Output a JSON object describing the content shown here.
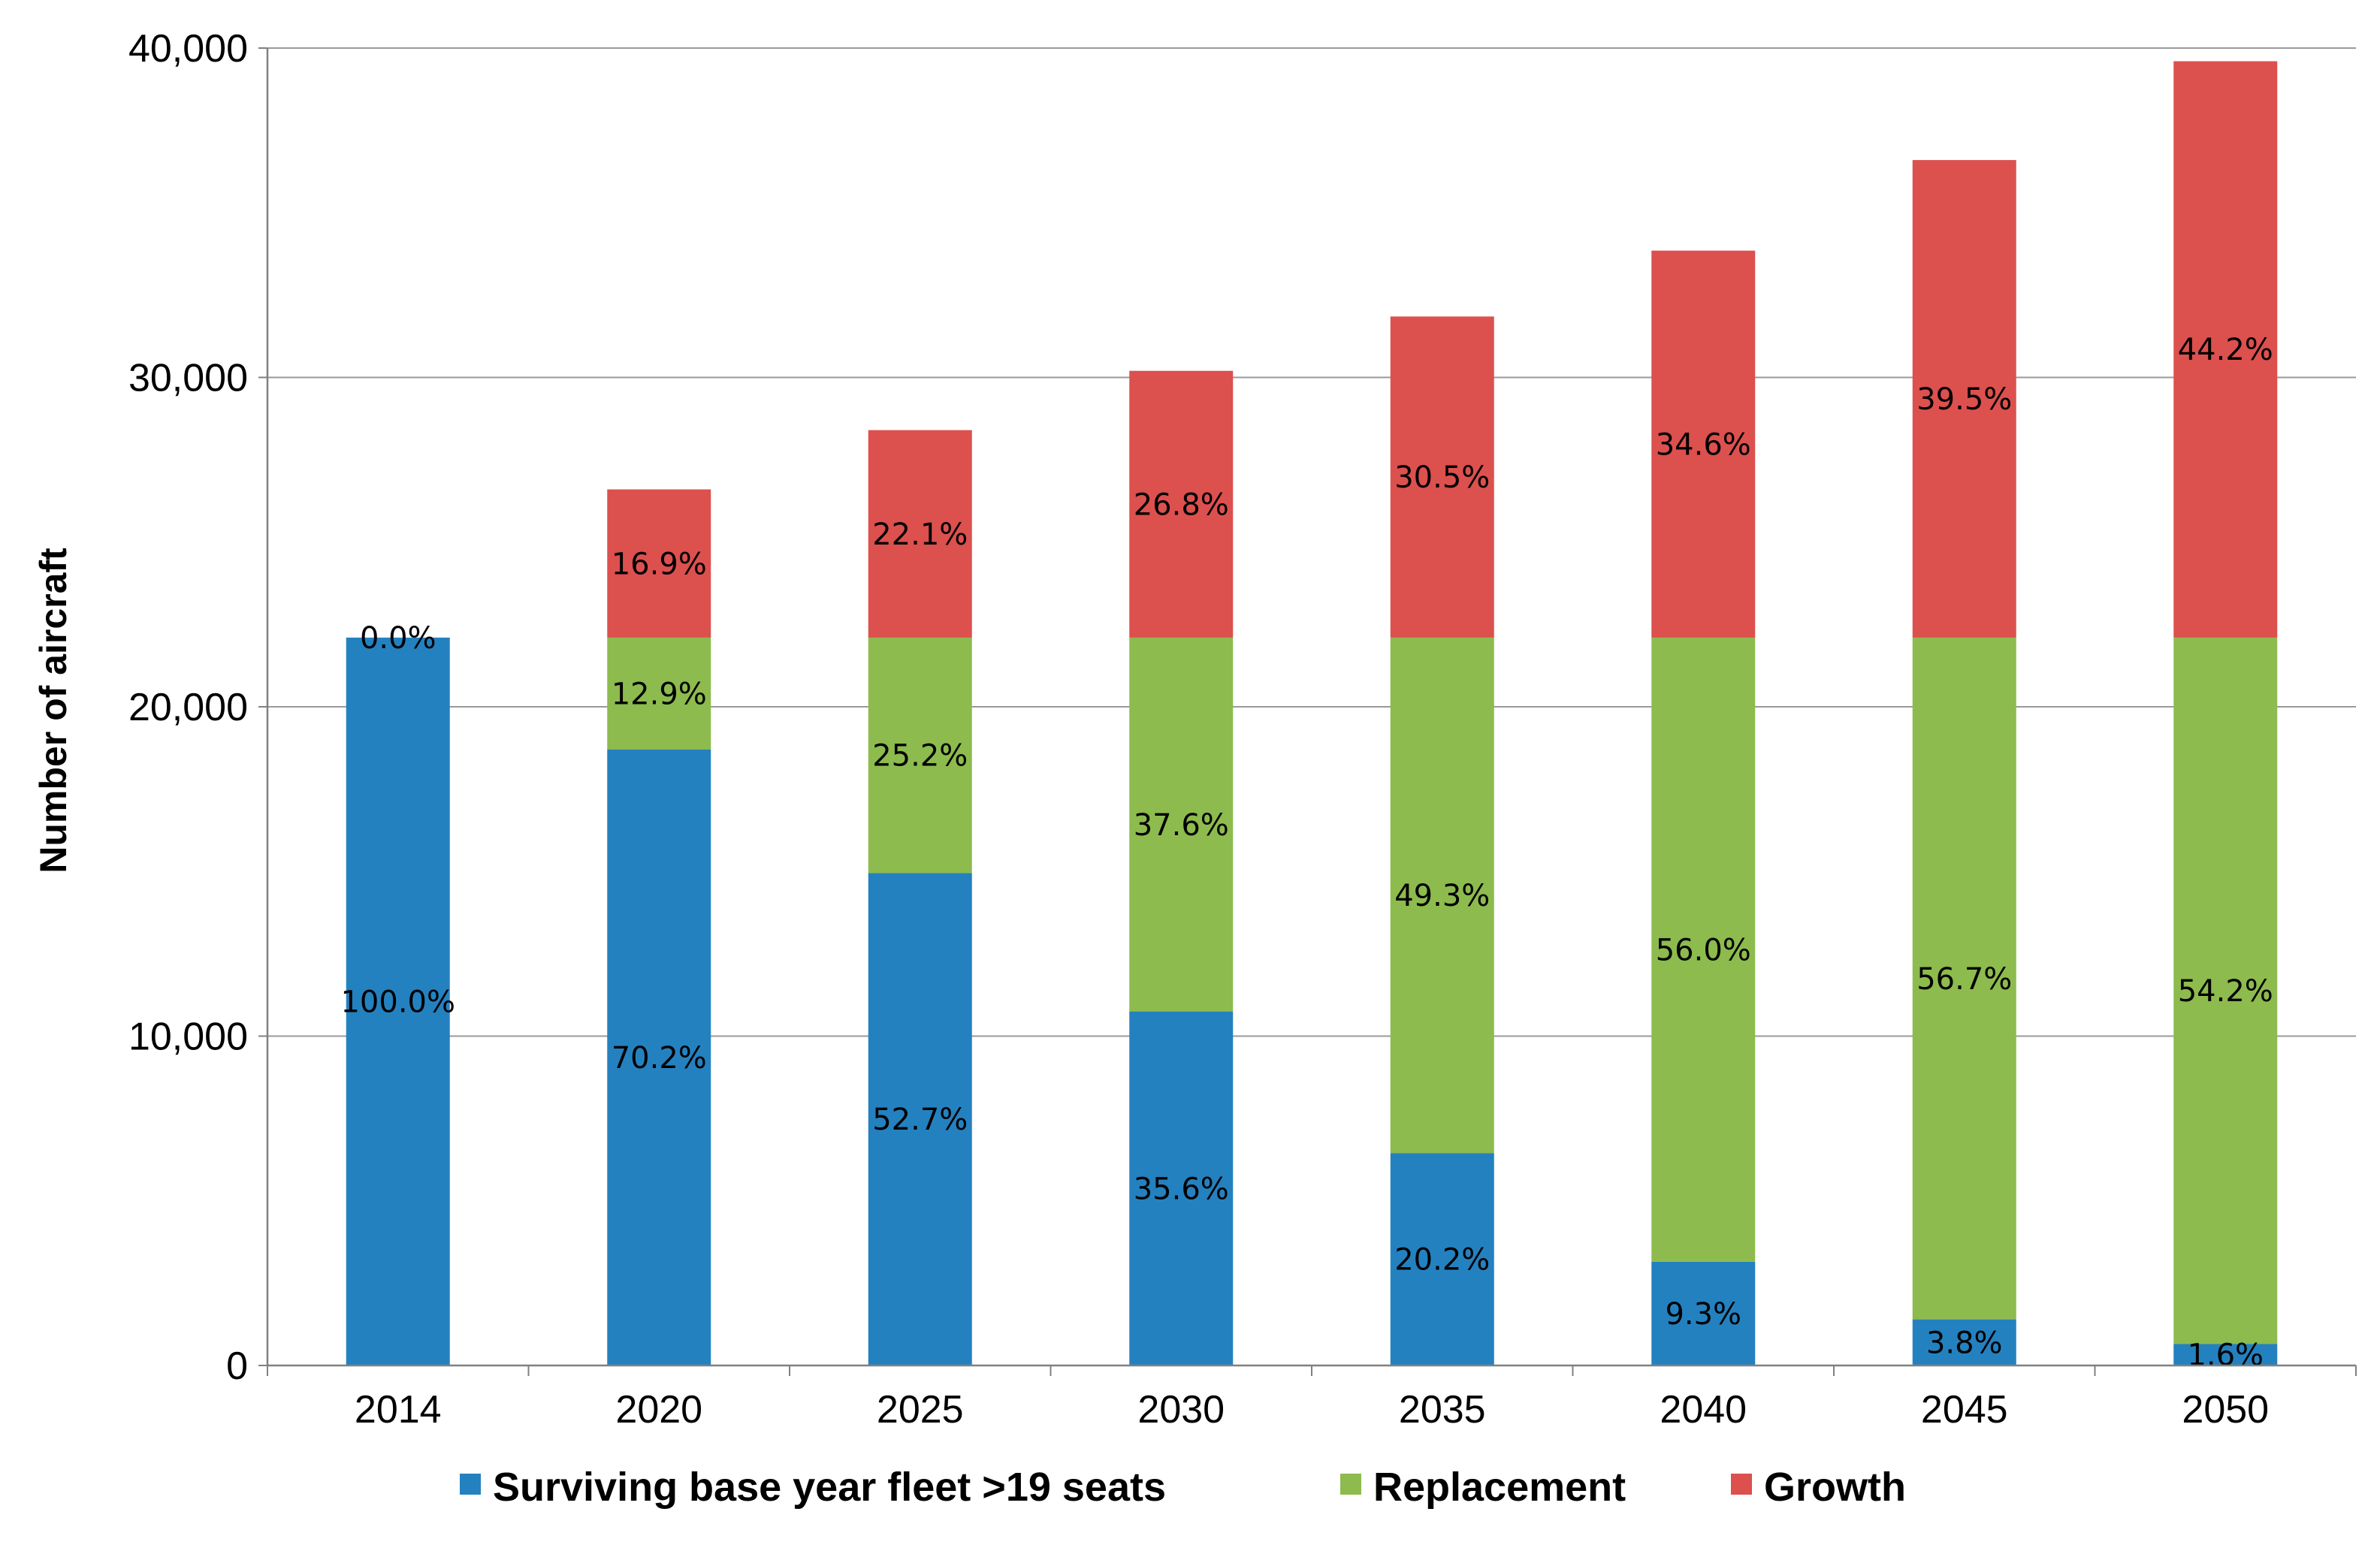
{
  "chart_data": {
    "type": "bar",
    "stacked": true,
    "categories": [
      "2014",
      "2020",
      "2025",
      "2030",
      "2035",
      "2040",
      "2045",
      "2050"
    ],
    "ylabel": "Number of aircraft",
    "ylim": [
      0,
      40000
    ],
    "yticks": [
      0,
      10000,
      20000,
      30000,
      40000
    ],
    "ytick_labels": [
      "0",
      "10,000",
      "20,000",
      "30,000",
      "40,000"
    ],
    "grid": true,
    "legend_position": "bottom",
    "series": [
      {
        "name": "Surviving base year fleet >19 seats",
        "color": "#2481C0",
        "values": [
          22100,
          18700,
          14950,
          10750,
          6450,
          3150,
          1400,
          650
        ],
        "labels": [
          "100.0%",
          "70.2%",
          "52.7%",
          "35.6%",
          "20.2%",
          "9.3%",
          "3.8%",
          "1.6%"
        ]
      },
      {
        "name": "Replacement",
        "color": "#8DBB4E",
        "values": [
          0,
          3400,
          7150,
          11350,
          15650,
          18950,
          20700,
          21450
        ],
        "labels": [
          "",
          "12.9%",
          "25.2%",
          "37.6%",
          "49.3%",
          "56.0%",
          "56.7%",
          "54.2%"
        ]
      },
      {
        "name": "Growth",
        "color": "#DC504E",
        "values": [
          0,
          4500,
          6300,
          8100,
          9750,
          11750,
          14500,
          17500
        ],
        "labels": [
          "0.0%",
          "16.9%",
          "22.1%",
          "26.8%",
          "30.5%",
          "34.6%",
          "39.5%",
          "44.2%"
        ]
      }
    ]
  }
}
